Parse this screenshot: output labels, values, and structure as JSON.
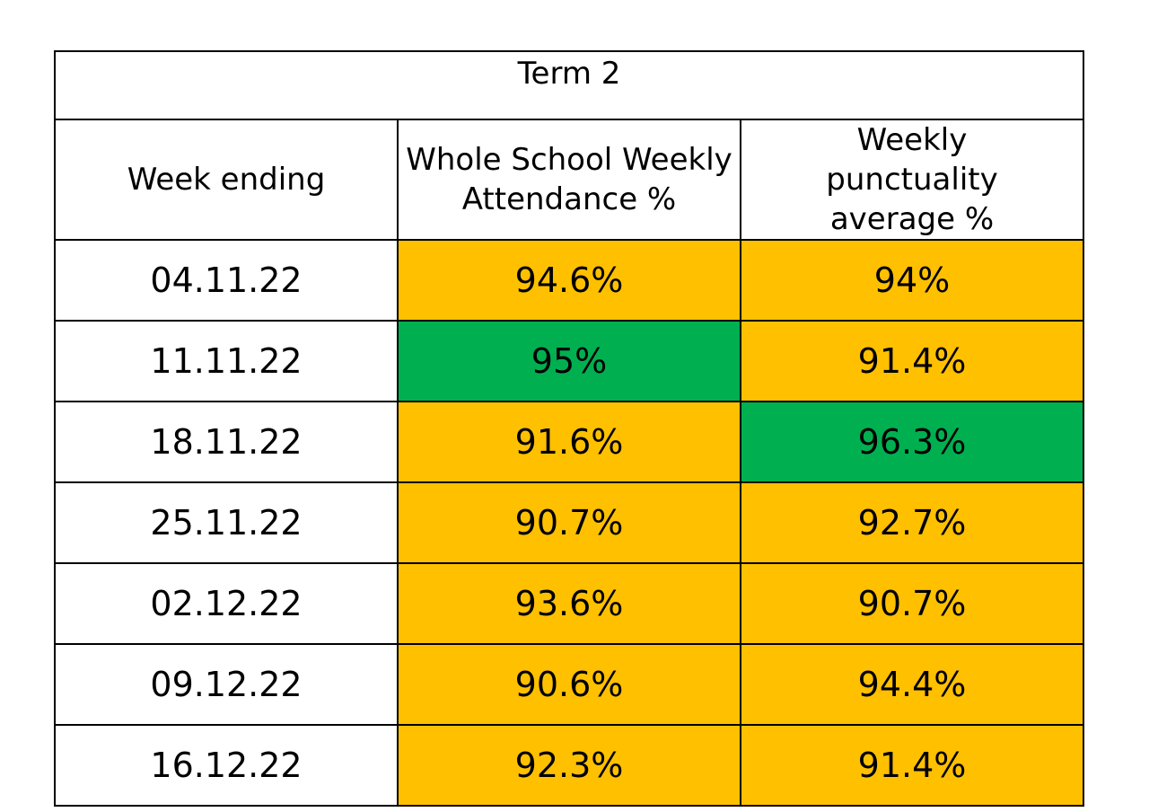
{
  "title": "Term 2",
  "columns": [
    "Week ending",
    "Whole School Weekly Attendance  %",
    "Weekly punctuality average %"
  ],
  "colors": {
    "amber": "#ffc000",
    "green": "#00b050",
    "white": "#ffffff"
  },
  "rows": [
    {
      "week": "04.11.22",
      "attendance": "94.6%",
      "attendance_color": "#ffc000",
      "punctuality": "94%",
      "punctuality_color": "#ffc000"
    },
    {
      "week": "11.11.22",
      "attendance": "95%",
      "attendance_color": "#00b050",
      "punctuality": "91.4%",
      "punctuality_color": "#ffc000"
    },
    {
      "week": "18.11.22",
      "attendance": "91.6%",
      "attendance_color": "#ffc000",
      "punctuality": "96.3%",
      "punctuality_color": "#00b050"
    },
    {
      "week": "25.11.22",
      "attendance": "90.7%",
      "attendance_color": "#ffc000",
      "punctuality": "92.7%",
      "punctuality_color": "#ffc000"
    },
    {
      "week": "02.12.22",
      "attendance": "93.6%",
      "attendance_color": "#ffc000",
      "punctuality": "90.7%",
      "punctuality_color": "#ffc000"
    },
    {
      "week": "09.12.22",
      "attendance": "90.6%",
      "attendance_color": "#ffc000",
      "punctuality": "94.4%",
      "punctuality_color": "#ffc000"
    },
    {
      "week": "16.12.22",
      "attendance": "92.3%",
      "attendance_color": "#ffc000",
      "punctuality": "91.4%",
      "punctuality_color": "#ffc000"
    }
  ]
}
